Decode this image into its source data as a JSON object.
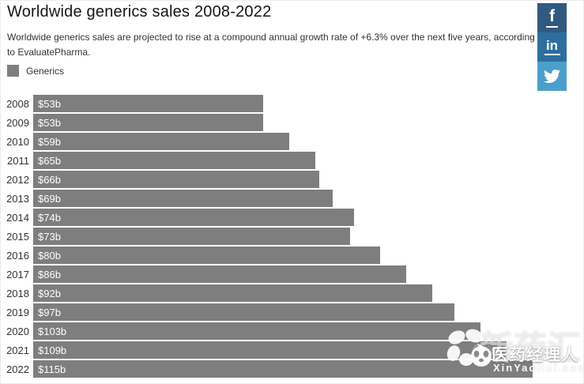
{
  "page": {
    "title": "Worldwide generics sales 2008-2022",
    "subtitle": "Worldwide generics sales are projected to rise at a compound annual growth rate of +6.3% over the next five years, according to EvaluatePharma."
  },
  "legend": {
    "label": "Generics",
    "swatch_color": "#7e7e7e"
  },
  "chart_data": {
    "type": "bar",
    "orientation": "horizontal",
    "title": "Worldwide generics sales 2008-2022",
    "categories": [
      "2008",
      "2009",
      "2010",
      "2011",
      "2012",
      "2013",
      "2014",
      "2015",
      "2016",
      "2017",
      "2018",
      "2019",
      "2020",
      "2021",
      "2022"
    ],
    "series": [
      {
        "name": "Generics",
        "values": [
          53,
          53,
          59,
          65,
          66,
          69,
          74,
          73,
          80,
          86,
          92,
          97,
          103,
          109,
          115
        ],
        "labels": [
          "$53b",
          "$53b",
          "$59b",
          "$65b",
          "$66b",
          "$69b",
          "$74b",
          "$73b",
          "$80b",
          "$86b",
          "$92b",
          "$97b",
          "$103b",
          "$109b",
          "$115b"
        ],
        "color": "#7e7e7e"
      }
    ],
    "xlabel": "",
    "ylabel": "",
    "xlim": [
      0,
      120
    ],
    "grid": false,
    "legend_position": "top-left",
    "bar_label_position": "inside-left",
    "bar_label_color": "#ffffff"
  },
  "social": {
    "facebook": {
      "label": "f",
      "color": "#31597f"
    },
    "linkedin": {
      "label": "in",
      "color": "#2e6e9e"
    },
    "twitter": {
      "color": "#4aa0cb"
    }
  },
  "watermark": {
    "ghost_text": "新药汇",
    "brand_text": "医药经理人",
    "site_text": "XinYaoHui.com"
  },
  "colors": {
    "background": "#ffffff",
    "bar": "#7e7e7e",
    "title_text": "#151515",
    "body_text": "#333333",
    "bar_label_text": "#ffffff"
  }
}
